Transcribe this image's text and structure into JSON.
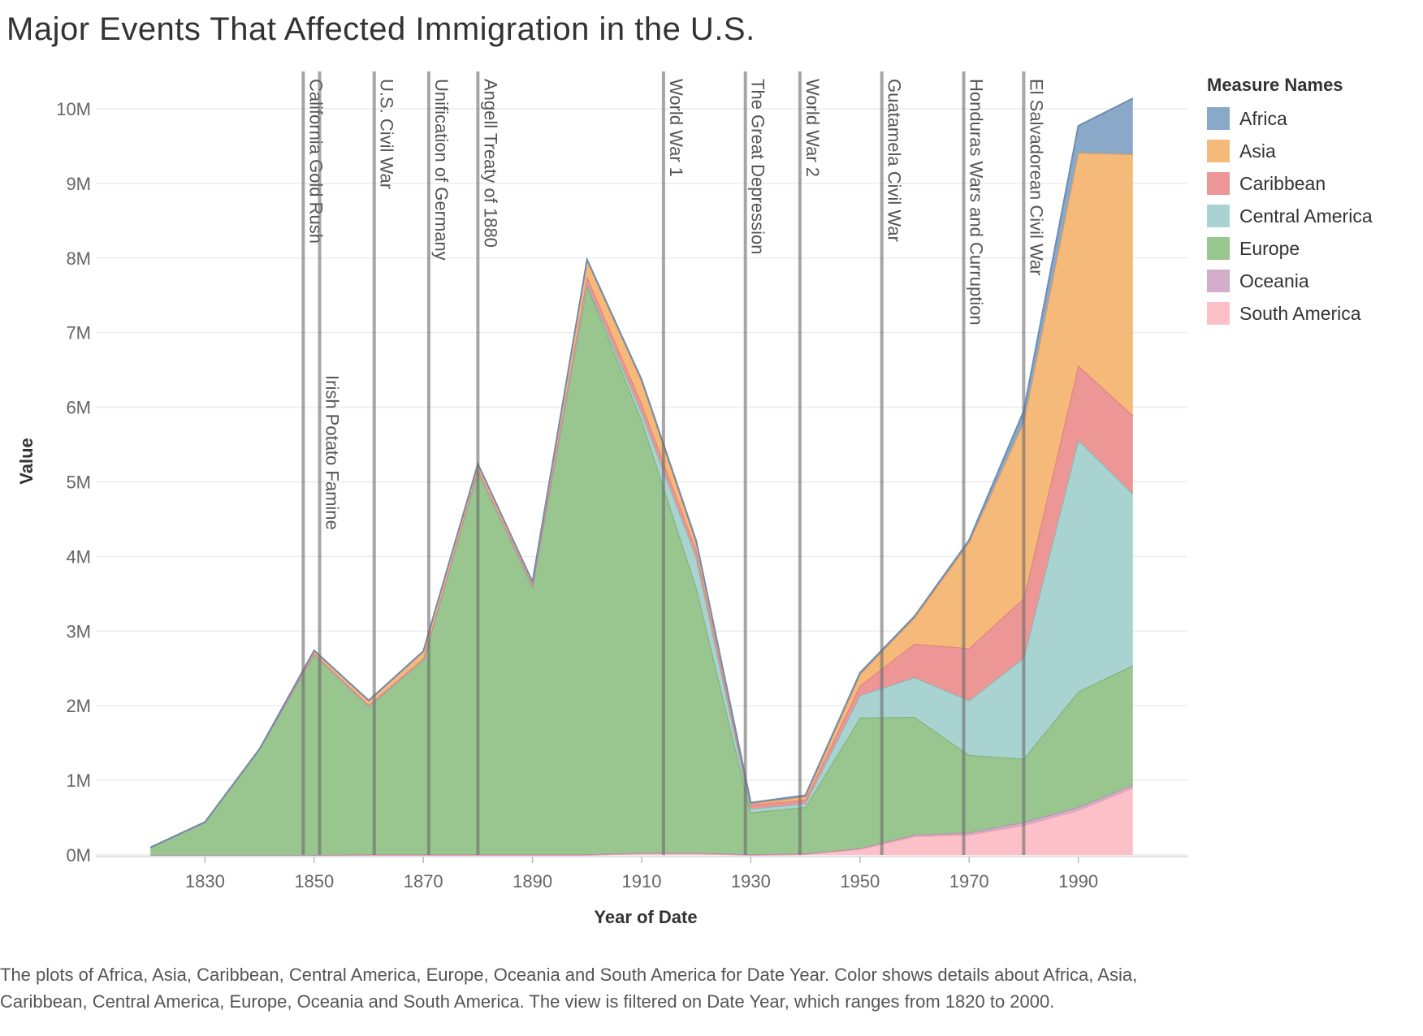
{
  "title": "Major Events That Affected Immigration in the U.S.",
  "caption": "The plots of Africa, Asia, Caribbean, Central America, Europe, Oceania and South America for Date Year.  Color shows details about Africa, Asia, Caribbean, Central America, Europe, Oceania and South America. The view is filtered on Date Year, which ranges from 1820 to 2000.",
  "legend": {
    "title": "Measure Names",
    "items": [
      {
        "label": "Africa",
        "color": "#8aa8c8"
      },
      {
        "label": "Asia",
        "color": "#f5b97a"
      },
      {
        "label": "Caribbean",
        "color": "#ec9696"
      },
      {
        "label": "Central America",
        "color": "#a9d3d1"
      },
      {
        "label": "Europe",
        "color": "#99c68f"
      },
      {
        "label": "Oceania",
        "color": "#d3adc9"
      },
      {
        "label": "South America",
        "color": "#fdc0c9"
      }
    ]
  },
  "chart_data": {
    "type": "area",
    "stacked": true,
    "xlabel": "Year of Date",
    "ylabel": "Value",
    "xlim": [
      1810,
      2010
    ],
    "ylim": [
      0,
      10.5
    ],
    "x_ticks": [
      1830,
      1850,
      1870,
      1890,
      1910,
      1930,
      1950,
      1970,
      1990
    ],
    "y_ticks": [
      {
        "value": 0,
        "label": "0M"
      },
      {
        "value": 1,
        "label": "1M"
      },
      {
        "value": 2,
        "label": "2M"
      },
      {
        "value": 3,
        "label": "3M"
      },
      {
        "value": 4,
        "label": "4M"
      },
      {
        "value": 5,
        "label": "5M"
      },
      {
        "value": 6,
        "label": "6M"
      },
      {
        "value": 7,
        "label": "7M"
      },
      {
        "value": 8,
        "label": "8M"
      },
      {
        "value": 9,
        "label": "9M"
      },
      {
        "value": 10,
        "label": "10M"
      }
    ],
    "units": "millions",
    "grid": true,
    "x": [
      1820,
      1830,
      1840,
      1850,
      1860,
      1870,
      1880,
      1890,
      1900,
      1910,
      1920,
      1930,
      1940,
      1950,
      1960,
      1970,
      1980,
      1990,
      2000
    ],
    "series": [
      {
        "name": "South America",
        "color": "#fdc0c9",
        "line": "#e8a0ab",
        "values": [
          0,
          0,
          0,
          0,
          0,
          0,
          0,
          0,
          0,
          0.02,
          0.02,
          0,
          0.01,
          0.08,
          0.25,
          0.27,
          0.4,
          0.6,
          0.9
        ]
      },
      {
        "name": "Oceania",
        "color": "#d3adc9",
        "line": "#b591ab",
        "values": [
          0,
          0,
          0,
          0,
          0.01,
          0.01,
          0.01,
          0.01,
          0.01,
          0.01,
          0.01,
          0.01,
          0.01,
          0.01,
          0.02,
          0.03,
          0.04,
          0.04,
          0.04
        ]
      },
      {
        "name": "Europe",
        "color": "#99c68f",
        "line": "#7faf74",
        "values": [
          0.1,
          0.44,
          1.42,
          2.68,
          1.98,
          2.6,
          5.13,
          3.58,
          7.62,
          5.8,
          3.56,
          0.56,
          0.62,
          1.75,
          1.58,
          1.04,
          0.85,
          1.55,
          1.6
        ]
      },
      {
        "name": "Central America",
        "color": "#a9d3d1",
        "line": "#86b8b5",
        "values": [
          0,
          0,
          0,
          0,
          0,
          0,
          0,
          0,
          0.02,
          0.1,
          0.4,
          0.05,
          0.05,
          0.3,
          0.53,
          0.73,
          1.35,
          3.37,
          2.3
        ]
      },
      {
        "name": "Caribbean",
        "color": "#ec9696",
        "line": "#e07f7f",
        "values": [
          0,
          0,
          0,
          0.02,
          0.02,
          0.02,
          0.03,
          0.03,
          0.1,
          0.12,
          0.1,
          0.05,
          0.05,
          0.13,
          0.45,
          0.7,
          0.8,
          1.0,
          1.05
        ]
      },
      {
        "name": "Asia",
        "color": "#f5b97a",
        "line": "#ee9a55",
        "values": [
          0,
          0,
          0,
          0.04,
          0.06,
          0.1,
          0.07,
          0.04,
          0.22,
          0.3,
          0.1,
          0.02,
          0.04,
          0.15,
          0.35,
          1.42,
          2.36,
          2.85,
          3.5
        ]
      },
      {
        "name": "Africa",
        "color": "#8aa8c8",
        "line": "#6e8db0",
        "values": [
          0,
          0,
          0,
          0,
          0,
          0,
          0,
          0,
          0.01,
          0.02,
          0.02,
          0.01,
          0.02,
          0.02,
          0.02,
          0.03,
          0.15,
          0.36,
          0.75
        ]
      }
    ],
    "events": [
      {
        "year": 1848,
        "label": "California Gold Rush"
      },
      {
        "year": 1851,
        "label": "Irish Potato Famine"
      },
      {
        "year": 1861,
        "label": "U.S. Civil War"
      },
      {
        "year": 1871,
        "label": "Unification of Germany"
      },
      {
        "year": 1880,
        "label": "Angell Treaty of 1880"
      },
      {
        "year": 1914,
        "label": "World War 1"
      },
      {
        "year": 1929,
        "label": "The Great Depression"
      },
      {
        "year": 1939,
        "label": "World War 2"
      },
      {
        "year": 1954,
        "label": "Guatamela Civil War"
      },
      {
        "year": 1969,
        "label": "Honduras Wars and Curruption"
      },
      {
        "year": 1980,
        "label": "El Salvadorean Civil War"
      }
    ]
  }
}
